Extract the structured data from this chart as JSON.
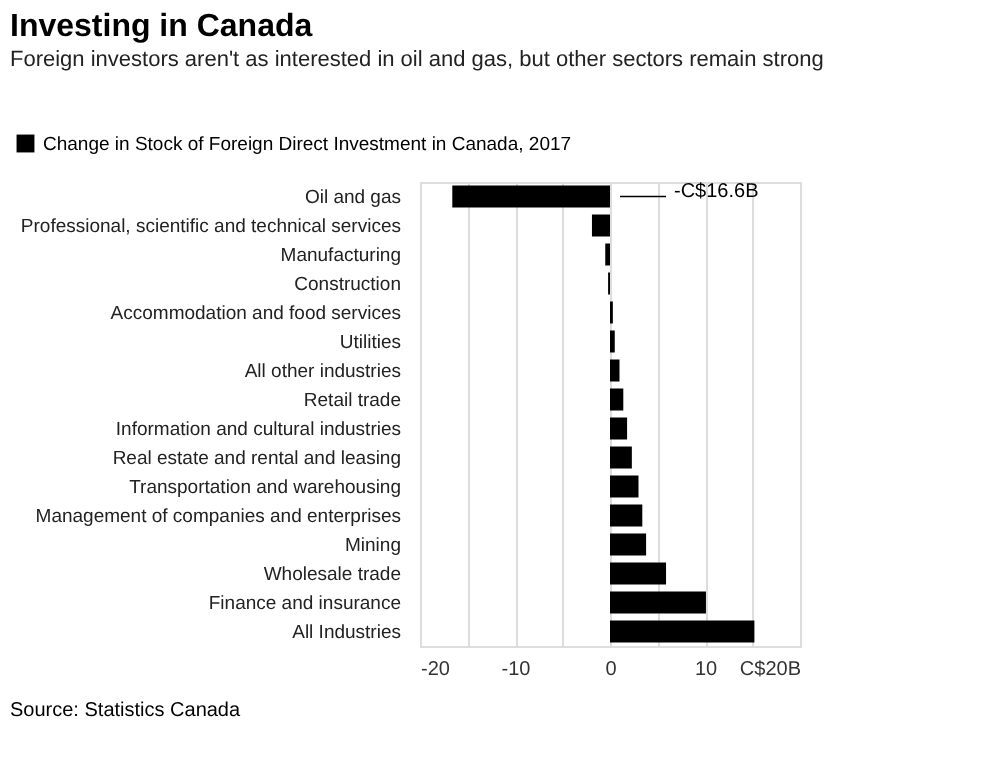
{
  "chart_data": {
    "type": "bar",
    "orientation": "horizontal",
    "title": "Investing in Canada",
    "subtitle": "Foreign investors aren't as interested in oil and gas, but other sectors remain strong",
    "categories": [
      "Oil and gas",
      "Professional, scientific and technical services",
      "Manufacturing",
      "Construction",
      "Accommodation and food services",
      "Utilities",
      "All other industries",
      "Retail trade",
      "Information and cultural industries",
      "Real estate and rental and leasing",
      "Transportation and warehousing",
      "Management of companies and enterprises",
      "Mining",
      "Wholesale trade",
      "Finance and insurance",
      "All Industries"
    ],
    "series": [
      {
        "name": "Change in Stock of Foreign Direct Investment in Canada, 2017",
        "color": "#000000",
        "values": [
          -16.6,
          -1.9,
          -0.5,
          -0.2,
          0.3,
          0.5,
          1.0,
          1.4,
          1.8,
          2.3,
          3.0,
          3.4,
          3.8,
          5.9,
          10.1,
          15.2
        ]
      }
    ],
    "xlim": [
      -20,
      20
    ],
    "xticks": [
      -20,
      {
        "value": -15,
        "label": null
      },
      -10,
      {
        "value": -5,
        "label": null
      },
      0,
      {
        "value": 5,
        "label": null
      },
      10,
      {
        "value": 15,
        "label": null
      },
      {
        "value": 20,
        "label": "C$20B"
      }
    ],
    "grid": "x",
    "legend": "top left",
    "annotations": [
      "-C$16.6B",
      "Source: Statistics Canada"
    ]
  }
}
